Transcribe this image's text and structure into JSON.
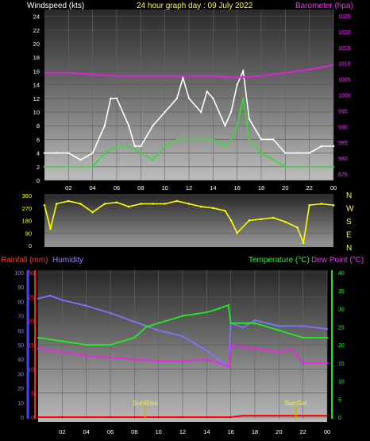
{
  "header": {
    "windspeed_label": "Windspeed (kts)",
    "title": "24 hour graph day : 09 July 2022",
    "barometer_label": "Barometer (hpa)"
  },
  "colors": {
    "wind_gust": "#ffffff",
    "wind_avg": "#33dd33",
    "barometer": "#dd22dd",
    "direction": "#ffff00",
    "rainfall": "#ff0000",
    "humidity": "#7777ff",
    "temperature": "#22ee22",
    "dew_point": "#ee22ee",
    "sun_marker": "#ccaa00"
  },
  "chart_data": [
    {
      "type": "line",
      "title": "24 hour graph day : 09 July 2022",
      "xlabel": "",
      "ylabel": "Windspeed (kts)",
      "y2label": "Barometer (hpa)",
      "x_tick_labels": [
        "02",
        "04",
        "06",
        "08",
        "10",
        "12",
        "14",
        "16",
        "18",
        "20",
        "22",
        "00"
      ],
      "x_hours": [
        2,
        4,
        6,
        8,
        10,
        12,
        14,
        16,
        18,
        20,
        22,
        24
      ],
      "ylim": [
        0,
        25
      ],
      "y_ticks": [
        0,
        2,
        4,
        6,
        8,
        10,
        12,
        14,
        16,
        18,
        20,
        22,
        24
      ],
      "y2lim": [
        973,
        1027
      ],
      "y2_ticks": [
        975,
        980,
        985,
        990,
        995,
        1000,
        1005,
        1010,
        1015,
        1020,
        1025
      ],
      "series": [
        {
          "name": "gust",
          "axis": "left",
          "x": [
            0,
            1,
            2,
            3,
            4,
            5,
            5.5,
            6,
            7,
            7.5,
            8,
            9,
            10,
            11,
            11.5,
            12,
            13,
            13.5,
            14,
            15,
            15.5,
            16,
            16.5,
            17,
            18,
            19,
            20,
            21,
            22,
            23,
            24
          ],
          "values": [
            4,
            4,
            4,
            3,
            4,
            8,
            12,
            12,
            8,
            5,
            5,
            8,
            10,
            12,
            15,
            12,
            10,
            13,
            12,
            8,
            10,
            14,
            16,
            9,
            6,
            6,
            4,
            4,
            4,
            5,
            5
          ]
        },
        {
          "name": "average",
          "axis": "left",
          "x": [
            0,
            1,
            2,
            3,
            4,
            5,
            6,
            7,
            8,
            9,
            10,
            11,
            12,
            13,
            14,
            15,
            15.5,
            16,
            16.5,
            17,
            18,
            19,
            20,
            21,
            22,
            23,
            24
          ],
          "values": [
            2,
            2,
            2,
            2,
            2,
            4,
            5,
            5,
            4,
            3,
            5,
            6,
            6,
            6,
            6,
            5,
            6,
            8,
            12,
            6,
            4,
            3,
            2,
            2,
            2,
            2,
            2
          ]
        },
        {
          "name": "barometer",
          "axis": "right",
          "x": [
            0,
            2,
            4,
            6,
            8,
            10,
            12,
            14,
            16,
            18,
            20,
            22,
            24
          ],
          "values": [
            1007,
            1007,
            1006.5,
            1006,
            1006,
            1006,
            1006,
            1006,
            1005.5,
            1006,
            1007,
            1008,
            1009.5
          ]
        }
      ],
      "grid": true
    },
    {
      "type": "scatter",
      "ylabel": "",
      "ylim": [
        0,
        360
      ],
      "y_ticks": [
        0,
        90,
        180,
        270,
        360
      ],
      "compass": [
        "N",
        "W",
        "S",
        "E",
        "N"
      ],
      "series": [
        {
          "name": "direction",
          "x": [
            0,
            0.5,
            1,
            2,
            3,
            4,
            5,
            6,
            7,
            8,
            9,
            10,
            11,
            12,
            13,
            14,
            15,
            15.5,
            16,
            17,
            18,
            19,
            20,
            21,
            21.5,
            22,
            23,
            24
          ],
          "values": [
            290,
            120,
            300,
            320,
            300,
            240,
            300,
            310,
            280,
            300,
            300,
            300,
            320,
            300,
            280,
            270,
            250,
            180,
            90,
            180,
            190,
            200,
            170,
            130,
            20,
            290,
            300,
            290
          ]
        }
      ]
    },
    {
      "type": "line",
      "ylabel": "Rainfall (mm)",
      "y3label": "Humidity",
      "y2label": "Temperature (°C)",
      "y4label": "Dew Point (°C)",
      "x_tick_labels": [
        "02",
        "04",
        "06",
        "08",
        "10",
        "12",
        "14",
        "16",
        "18",
        "20",
        "22",
        "00"
      ],
      "x_hours": [
        2,
        4,
        6,
        8,
        10,
        12,
        14,
        16,
        18,
        20,
        22,
        24
      ],
      "rain_ticks": [
        0,
        5,
        10,
        15,
        20,
        25,
        30
      ],
      "humidity_ticks": [
        0,
        10,
        20,
        30,
        40,
        50,
        60,
        70,
        80,
        90,
        100
      ],
      "temp_ticks": [
        0,
        5,
        10,
        15,
        20,
        25,
        30,
        35,
        40
      ],
      "series": [
        {
          "name": "humidity",
          "axis": "humidity",
          "x": [
            0,
            1,
            2,
            4,
            6,
            8,
            10,
            12,
            14,
            15,
            15.8,
            16,
            17,
            18,
            20,
            22,
            24
          ],
          "values": [
            82,
            84,
            81,
            77,
            72,
            66,
            60,
            56,
            46,
            40,
            35,
            65,
            62,
            67,
            63,
            63,
            61
          ]
        },
        {
          "name": "temperature",
          "axis": "temp",
          "x": [
            0,
            2,
            4,
            6,
            8,
            9,
            10,
            12,
            14,
            15,
            15.8,
            16,
            17,
            18,
            20,
            22,
            24
          ],
          "values": [
            22,
            21,
            20,
            20,
            22,
            25,
            26,
            28,
            29,
            30,
            31,
            26,
            26,
            26,
            24,
            22,
            22
          ]
        },
        {
          "name": "dew_point",
          "axis": "temp",
          "x": [
            0,
            2,
            4,
            6,
            8,
            10,
            12,
            14,
            15,
            15.8,
            16,
            18,
            20,
            21,
            22,
            24
          ],
          "values": [
            19,
            18,
            17,
            16.5,
            16,
            15.5,
            15.5,
            16,
            15,
            14,
            20,
            19,
            18,
            19,
            15,
            15
          ]
        },
        {
          "name": "rainfall",
          "axis": "rain",
          "x": [
            0,
            16,
            17,
            24
          ],
          "values": [
            0,
            0,
            0.3,
            0.3
          ]
        }
      ],
      "annotations": [
        {
          "label": "SunRise",
          "x": 8.9
        },
        {
          "label": "SunSet",
          "x": 21.4
        }
      ]
    }
  ]
}
